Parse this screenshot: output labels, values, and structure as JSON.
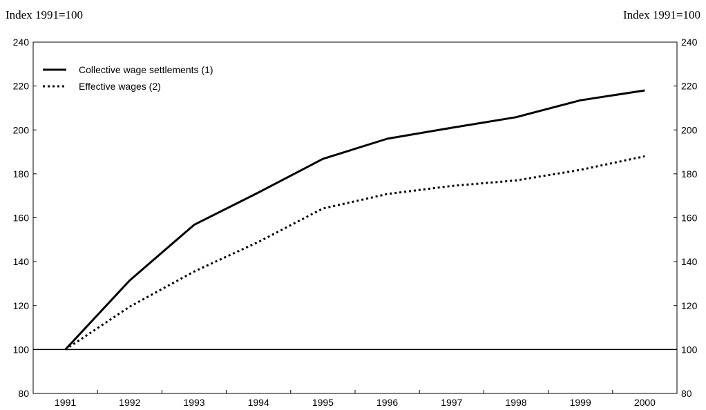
{
  "chart_data": {
    "type": "line",
    "left_axis_unit": "Index 1991=100",
    "right_axis_unit": "Index 1991=100",
    "x": [
      "1991",
      "1992",
      "1993",
      "1994",
      "1995",
      "1996",
      "1997",
      "1998",
      "1999",
      "2000"
    ],
    "ylim": [
      80,
      240
    ],
    "yticks": [
      80,
      100,
      120,
      140,
      160,
      180,
      200,
      220,
      240
    ],
    "yticks_labels": [
      "80",
      "100",
      "120",
      "140",
      "160",
      "180",
      "200",
      "220",
      "240"
    ],
    "reference_line": 100,
    "legend_position": "top-left",
    "grid": false,
    "series": [
      {
        "name": "Collective wage settlements (1)",
        "style": "solid",
        "color": "#000000",
        "values": [
          100,
          131.5,
          156.8,
          171.5,
          186.8,
          196.0,
          201.0,
          205.8,
          213.5,
          218.0
        ]
      },
      {
        "name": "Effective wages (2)",
        "style": "dotted",
        "color": "#000000",
        "values": [
          100,
          119.5,
          135.5,
          149.0,
          164.2,
          170.8,
          174.5,
          177.0,
          181.8,
          188.0
        ]
      }
    ]
  }
}
